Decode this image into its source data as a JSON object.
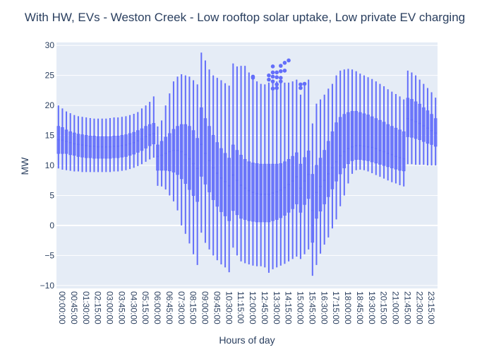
{
  "chart_data": {
    "type": "box",
    "title": "With HW, EVs - Weston Creek - Low rooftop solar uptake, Low private EV charging",
    "xlabel": "Hours of day",
    "ylabel": "MW",
    "ylim": [
      -10.5,
      30.5
    ],
    "yticks": [
      30,
      25,
      20,
      15,
      10,
      5,
      0,
      -5,
      -10
    ],
    "ytick_labels": [
      "30",
      "25",
      "20",
      "15",
      "10",
      "5",
      "0",
      "−5",
      "−10"
    ],
    "grid": true,
    "legend": "none",
    "colors": {
      "box": "#636efa",
      "background": "#e5ecf6",
      "grid": "#ffffff",
      "text": "#2a3f5f"
    },
    "x_interval_minutes": 15,
    "x_tick_every": 3,
    "categories": [
      "00:00:00",
      "00:15:00",
      "00:30:00",
      "00:45:00",
      "01:00:00",
      "01:15:00",
      "01:30:00",
      "01:45:00",
      "02:00:00",
      "02:15:00",
      "02:30:00",
      "02:45:00",
      "03:00:00",
      "03:15:00",
      "03:30:00",
      "03:45:00",
      "04:00:00",
      "04:15:00",
      "04:30:00",
      "04:45:00",
      "05:00:00",
      "05:15:00",
      "05:30:00",
      "05:45:00",
      "06:00:00",
      "06:15:00",
      "06:30:00",
      "06:45:00",
      "07:00:00",
      "07:15:00",
      "07:30:00",
      "07:45:00",
      "08:00:00",
      "08:15:00",
      "08:30:00",
      "08:45:00",
      "09:00:00",
      "09:15:00",
      "09:30:00",
      "09:45:00",
      "10:00:00",
      "10:15:00",
      "10:30:00",
      "10:45:00",
      "11:00:00",
      "11:15:00",
      "11:30:00",
      "11:45:00",
      "12:00:00",
      "12:15:00",
      "12:30:00",
      "12:45:00",
      "13:00:00",
      "13:15:00",
      "13:30:00",
      "13:45:00",
      "14:00:00",
      "14:15:00",
      "14:30:00",
      "14:45:00",
      "15:00:00",
      "15:15:00",
      "15:30:00",
      "15:45:00",
      "16:00:00",
      "16:15:00",
      "16:30:00",
      "16:45:00",
      "17:00:00",
      "17:15:00",
      "17:30:00",
      "17:45:00",
      "18:00:00",
      "18:15:00",
      "18:30:00",
      "18:45:00",
      "19:00:00",
      "19:15:00",
      "19:30:00",
      "19:45:00",
      "20:00:00",
      "20:15:00",
      "20:30:00",
      "20:45:00",
      "21:00:00",
      "21:15:00",
      "21:30:00",
      "21:45:00",
      "22:00:00",
      "22:15:00",
      "22:30:00",
      "22:45:00",
      "23:00:00",
      "23:15:00",
      "23:30:00",
      "23:45:00"
    ],
    "boxes": [
      {
        "min": 9.5,
        "q1": 12,
        "median": 14.3,
        "q3": 16.5,
        "max": 20
      },
      {
        "min": 9.3,
        "q1": 12,
        "median": 14.2,
        "q3": 16.3,
        "max": 19.5
      },
      {
        "min": 9.2,
        "q1": 12,
        "median": 14,
        "q3": 15.9,
        "max": 19
      },
      {
        "min": 9.1,
        "q1": 11.8,
        "median": 13.8,
        "q3": 15.6,
        "max": 18.7
      },
      {
        "min": 9,
        "q1": 11.7,
        "median": 13.6,
        "q3": 15.4,
        "max": 18.4
      },
      {
        "min": 9,
        "q1": 11.5,
        "median": 13.5,
        "q3": 15.2,
        "max": 18.2
      },
      {
        "min": 8.9,
        "q1": 11.4,
        "median": 13.4,
        "q3": 15.1,
        "max": 18.1
      },
      {
        "min": 8.9,
        "q1": 11.3,
        "median": 13.3,
        "q3": 15,
        "max": 18
      },
      {
        "min": 8.9,
        "q1": 11.3,
        "median": 13.2,
        "q3": 14.9,
        "max": 17.9
      },
      {
        "min": 8.9,
        "q1": 11.2,
        "median": 13.2,
        "q3": 14.9,
        "max": 17.8
      },
      {
        "min": 8.9,
        "q1": 11.2,
        "median": 13.1,
        "q3": 14.8,
        "max": 17.8
      },
      {
        "min": 8.9,
        "q1": 11.2,
        "median": 13.1,
        "q3": 14.8,
        "max": 17.8
      },
      {
        "min": 8.9,
        "q1": 11.2,
        "median": 13.1,
        "q3": 14.8,
        "max": 17.8
      },
      {
        "min": 8.9,
        "q1": 11.2,
        "median": 13.1,
        "q3": 14.8,
        "max": 17.9
      },
      {
        "min": 9,
        "q1": 11.3,
        "median": 13.2,
        "q3": 14.9,
        "max": 18
      },
      {
        "min": 9,
        "q1": 11.3,
        "median": 13.2,
        "q3": 14.9,
        "max": 18
      },
      {
        "min": 9.1,
        "q1": 11.4,
        "median": 13.3,
        "q3": 15,
        "max": 18.1
      },
      {
        "min": 9.2,
        "q1": 11.5,
        "median": 13.4,
        "q3": 15.1,
        "max": 18.2
      },
      {
        "min": 9.4,
        "q1": 11.7,
        "median": 13.6,
        "q3": 15.3,
        "max": 18.4
      },
      {
        "min": 9.6,
        "q1": 11.9,
        "median": 13.8,
        "q3": 15.5,
        "max": 18.6
      },
      {
        "min": 9.9,
        "q1": 12.2,
        "median": 14.1,
        "q3": 15.8,
        "max": 18.9
      },
      {
        "min": 10.2,
        "q1": 12.5,
        "median": 14.4,
        "q3": 16.1,
        "max": 19.5
      },
      {
        "min": 10.6,
        "q1": 12.9,
        "median": 14.8,
        "q3": 16.5,
        "max": 20
      },
      {
        "min": 11,
        "q1": 13.3,
        "median": 15.1,
        "q3": 16.8,
        "max": 20.6
      },
      {
        "min": 11.3,
        "q1": 13.6,
        "median": 15.3,
        "q3": 17,
        "max": 21.5
      },
      {
        "min": 6.6,
        "q1": 9.2,
        "median": 11.5,
        "q3": 13.4,
        "max": 16.5
      },
      {
        "min": 6.5,
        "q1": 9.2,
        "median": 11.7,
        "q3": 14,
        "max": 17.5
      },
      {
        "min": 6,
        "q1": 9.2,
        "median": 12,
        "q3": 14.7,
        "max": 20
      },
      {
        "min": 5,
        "q1": 9.1,
        "median": 12.3,
        "q3": 15.3,
        "max": 22
      },
      {
        "min": 4,
        "q1": 8.9,
        "median": 12.5,
        "q3": 16,
        "max": 24
      },
      {
        "min": 2.5,
        "q1": 8.5,
        "median": 12.5,
        "q3": 16.5,
        "max": 24.8
      },
      {
        "min": 0,
        "q1": 7.8,
        "median": 12.3,
        "q3": 16.8,
        "max": 25.2
      },
      {
        "min": -1.4,
        "q1": 7,
        "median": 11.8,
        "q3": 16.8,
        "max": 25
      },
      {
        "min": -3,
        "q1": 6,
        "median": 11.1,
        "q3": 16.5,
        "max": 24.8
      },
      {
        "min": -4.8,
        "q1": 5,
        "median": 10.3,
        "q3": 15.8,
        "max": 24.2
      },
      {
        "min": -6.6,
        "q1": 4,
        "median": 9.5,
        "q3": 14.5,
        "max": 23.5
      },
      {
        "min": -1.2,
        "q1": 8.2,
        "median": 13.5,
        "q3": 19.6,
        "max": 28.8
      },
      {
        "min": -2.9,
        "q1": 6.9,
        "median": 12,
        "q3": 17.8,
        "max": 27.5
      },
      {
        "min": -4,
        "q1": 5.6,
        "median": 10.8,
        "q3": 16.5,
        "max": 26
      },
      {
        "min": -5,
        "q1": 4.3,
        "median": 9.6,
        "q3": 15,
        "max": 25
      },
      {
        "min": -5.8,
        "q1": 3.2,
        "median": 8.7,
        "q3": 13.8,
        "max": 24.6
      },
      {
        "min": -6.5,
        "q1": 2.3,
        "median": 7.9,
        "q3": 12.8,
        "max": 24.2
      },
      {
        "min": -7,
        "q1": 1.6,
        "median": 7.3,
        "q3": 12,
        "max": 23.7
      },
      {
        "min": -7.8,
        "q1": 0.8,
        "median": 6.6,
        "q3": 11.2,
        "max": 23.3
      },
      {
        "min": -3.7,
        "q1": 2.5,
        "median": 8.4,
        "q3": 13.4,
        "max": 27
      },
      {
        "min": -5,
        "q1": 1.8,
        "median": 7.5,
        "q3": 12.5,
        "max": 26.5
      },
      {
        "min": -6,
        "q1": 1.2,
        "median": 6.7,
        "q3": 11.7,
        "max": 26.6
      },
      {
        "min": -6.3,
        "q1": 1,
        "median": 6.2,
        "q3": 11,
        "max": 26.6
      },
      {
        "min": -6.5,
        "q1": 0.8,
        "median": 5.8,
        "q3": 10.6,
        "max": 25.5
      },
      {
        "min": -6.7,
        "q1": 0.7,
        "median": 5.5,
        "q3": 10.4,
        "max": 24.5
      },
      {
        "min": -6.8,
        "q1": 0.6,
        "median": 5.3,
        "q3": 10.3,
        "max": 24
      },
      {
        "min": -6.8,
        "q1": 0.6,
        "median": 5.2,
        "q3": 10.2,
        "max": 23.6
      },
      {
        "min": -7,
        "q1": 0.6,
        "median": 5.2,
        "q3": 10.2,
        "max": 23.5
      },
      {
        "min": -7.9,
        "q1": 0.6,
        "median": 5.2,
        "q3": 10.2,
        "max": 23.8
      },
      {
        "min": -7.3,
        "q1": 0.8,
        "median": 5.4,
        "q3": 10.2,
        "max": 24
      },
      {
        "min": -7,
        "q1": 1,
        "median": 5.6,
        "q3": 10.2,
        "max": 24
      },
      {
        "min": -6.7,
        "q1": 1.3,
        "median": 5.9,
        "q3": 10.3,
        "max": 23.9
      },
      {
        "min": -6.4,
        "q1": 1.7,
        "median": 6.3,
        "q3": 10.6,
        "max": 23.8
      },
      {
        "min": -6,
        "q1": 2.2,
        "median": 6.8,
        "q3": 11,
        "max": 23.8
      },
      {
        "min": -5.6,
        "q1": 2.8,
        "median": 7.4,
        "q3": 11.5,
        "max": 24
      },
      {
        "min": -5.2,
        "q1": 3.6,
        "median": 8.1,
        "q3": 12.1,
        "max": 24.3
      },
      {
        "min": -5.6,
        "q1": 2.2,
        "median": 6.2,
        "q3": 10.2,
        "max": 21.8
      },
      {
        "min": -4.8,
        "q1": 3.5,
        "median": 7.4,
        "q3": 11.3,
        "max": 23.6
      },
      {
        "min": -4,
        "q1": 4.5,
        "median": 8.5,
        "q3": 12.4,
        "max": 24.3
      },
      {
        "min": -8.4,
        "q1": -2.8,
        "median": 2.5,
        "q3": 8.5,
        "max": 17
      },
      {
        "min": -6.6,
        "q1": 1.2,
        "median": 5.5,
        "q3": 10,
        "max": 20.3
      },
      {
        "min": -4.7,
        "q1": 2.4,
        "median": 6.5,
        "q3": 11.2,
        "max": 21
      },
      {
        "min": -3.2,
        "q1": 3.6,
        "median": 7.5,
        "q3": 12.5,
        "max": 21.8
      },
      {
        "min": -2,
        "q1": 4.8,
        "median": 8.6,
        "q3": 14,
        "max": 22.8
      },
      {
        "min": -0.5,
        "q1": 6.1,
        "median": 9.6,
        "q3": 15.6,
        "max": 23.6
      },
      {
        "min": 1,
        "q1": 7.4,
        "median": 10.6,
        "q3": 17.1,
        "max": 25
      },
      {
        "min": 3.2,
        "q1": 8.6,
        "median": 11.6,
        "q3": 18,
        "max": 25.8
      },
      {
        "min": 5,
        "q1": 9.6,
        "median": 12.3,
        "q3": 18.5,
        "max": 26
      },
      {
        "min": 7,
        "q1": 10.3,
        "median": 12.8,
        "q3": 18.8,
        "max": 26.1
      },
      {
        "min": 8.6,
        "q1": 10.8,
        "median": 13.1,
        "q3": 19,
        "max": 26
      },
      {
        "min": 9.2,
        "q1": 11,
        "median": 13.3,
        "q3": 19,
        "max": 25.7
      },
      {
        "min": 9.3,
        "q1": 11,
        "median": 13.3,
        "q3": 18.8,
        "max": 25.3
      },
      {
        "min": 9.2,
        "q1": 10.9,
        "median": 13.2,
        "q3": 18.6,
        "max": 25
      },
      {
        "min": 9,
        "q1": 10.8,
        "median": 13.1,
        "q3": 18.4,
        "max": 24.7
      },
      {
        "min": 8.7,
        "q1": 10.6,
        "median": 13,
        "q3": 18.1,
        "max": 24.4
      },
      {
        "min": 8.4,
        "q1": 10.4,
        "median": 12.8,
        "q3": 17.8,
        "max": 24
      },
      {
        "min": 8.1,
        "q1": 10.2,
        "median": 12.5,
        "q3": 17.5,
        "max": 23.6
      },
      {
        "min": 7.8,
        "q1": 10,
        "median": 12.3,
        "q3": 17.2,
        "max": 23.2
      },
      {
        "min": 7.5,
        "q1": 9.8,
        "median": 12,
        "q3": 16.8,
        "max": 22.7
      },
      {
        "min": 7.2,
        "q1": 9.6,
        "median": 11.8,
        "q3": 16.5,
        "max": 22.3
      },
      {
        "min": 7,
        "q1": 9.4,
        "median": 11.5,
        "q3": 16.2,
        "max": 21.9
      },
      {
        "min": 6.7,
        "q1": 9.2,
        "median": 11.3,
        "q3": 15.9,
        "max": 21.5
      },
      {
        "min": 6.5,
        "q1": 9.1,
        "median": 11.1,
        "q3": 15.6,
        "max": 21
      },
      {
        "min": 10.2,
        "q1": 14.8,
        "median": 17.8,
        "q3": 21.2,
        "max": 25.8
      },
      {
        "min": 10.2,
        "q1": 14.7,
        "median": 17.6,
        "q3": 21,
        "max": 25.5
      },
      {
        "min": 10.1,
        "q1": 14.5,
        "median": 17.3,
        "q3": 20.6,
        "max": 25
      },
      {
        "min": 10.1,
        "q1": 14.3,
        "median": 17,
        "q3": 20.2,
        "max": 24.3
      },
      {
        "min": 10.1,
        "q1": 14,
        "median": 16.6,
        "q3": 19.6,
        "max": 23.6
      },
      {
        "min": 10,
        "q1": 13.7,
        "median": 16.2,
        "q3": 19.1,
        "max": 22.9
      },
      {
        "min": 10,
        "q1": 13.5,
        "median": 15.8,
        "q3": 18.5,
        "max": 22.2
      },
      {
        "min": 10,
        "q1": 13.2,
        "median": 15.4,
        "q3": 17.8,
        "max": 21.3
      }
    ],
    "outliers": [
      {
        "x": "12:15:00",
        "y": [
          24.8,
          24.6
        ]
      },
      {
        "x": "13:15:00",
        "y": [
          25.0,
          24.3
        ]
      },
      {
        "x": "13:30:00",
        "y": [
          26.5,
          25.5,
          24.8,
          24.0,
          22.8
        ]
      },
      {
        "x": "13:45:00",
        "y": [
          25.5,
          24.7,
          23.5,
          22.9
        ]
      },
      {
        "x": "14:00:00",
        "y": [
          26.6,
          25.7,
          24.6,
          24.0
        ]
      },
      {
        "x": "14:15:00",
        "y": [
          27.1,
          25.8
        ]
      },
      {
        "x": "14:30:00",
        "y": [
          27.5
        ]
      },
      {
        "x": "15:15:00",
        "y": [
          23.5,
          22.9
        ]
      },
      {
        "x": "15:30:00",
        "y": [
          23.6
        ]
      }
    ]
  }
}
